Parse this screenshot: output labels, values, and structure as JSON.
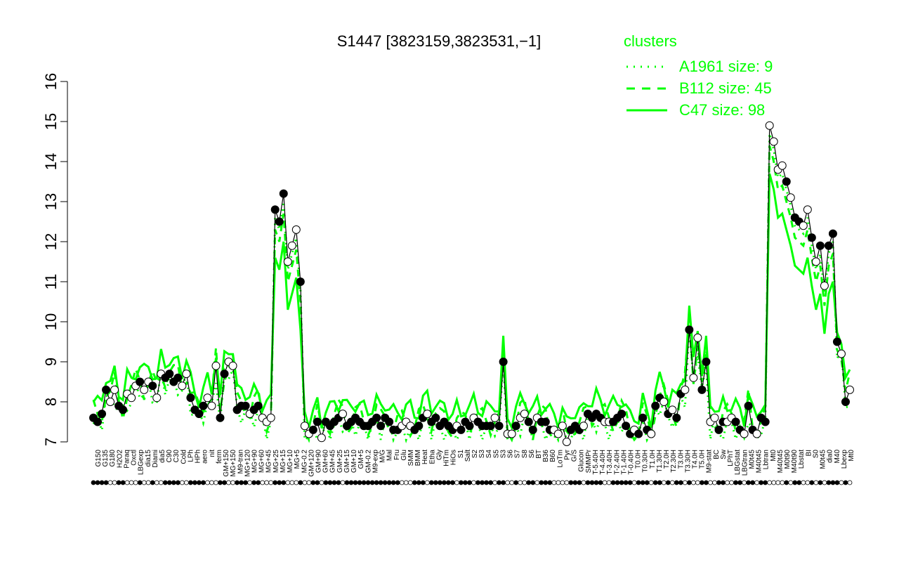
{
  "chart_data": {
    "type": "line",
    "title": "S1447 [3823159,3823531,−1]",
    "xlabel": "",
    "ylabel": "",
    "ylim": [
      7,
      16
    ],
    "yticks": [
      7,
      8,
      9,
      10,
      11,
      12,
      13,
      14,
      15,
      16
    ],
    "grid": false,
    "legend": {
      "title": "clusters",
      "position": "top-right",
      "color": "#00ff00",
      "entries": [
        {
          "label": "A1961 size: 9",
          "style": "dotted"
        },
        {
          "label": "B112 size: 45",
          "style": "dashed"
        },
        {
          "label": "C47 size: 98",
          "style": "solid"
        }
      ]
    },
    "x_tick_labels": [
      "G150",
      "G135",
      "G180",
      "H2O2",
      "Paraq",
      "Oxctl",
      "LBGexp",
      "dia15",
      "Diami",
      "dia5",
      "C90",
      "C30",
      "Cold",
      "LPh",
      "HPh",
      "aero",
      "nit",
      "ferm",
      "GM+150",
      "MG+150",
      "M9-tran",
      "MG+120",
      "MG+90",
      "MG+60",
      "MG+45",
      "MG+25",
      "MG+15",
      "MG+10",
      "MG+5",
      "MG-0.2",
      "GM+120",
      "GM+90",
      "GM+60",
      "GM+45",
      "GM+25",
      "GM+15",
      "GM+10",
      "GM+5",
      "GM-0.2",
      "M9-exp",
      "M/G",
      "Mal",
      "Fru",
      "Glu",
      "SMM",
      "BMM",
      "Heat",
      "Etha",
      "Gly",
      "HiTm",
      "HiOs",
      "S1",
      "Salt",
      "S2",
      "S3",
      "S4",
      "S5",
      "S3",
      "S6",
      "S7",
      "S8",
      "S6",
      "BT",
      "B36",
      "B60",
      "LoTm",
      "Pyr",
      "G/S",
      "Glucon",
      "SMMPr",
      "T-5.40H",
      "T-4.40H",
      "T-3.40H",
      "T-2.40H",
      "T-1.40H",
      "T-0.40H",
      "T0.0H",
      "T0.30H",
      "T1.0H",
      "T1.30H",
      "T2.0H",
      "T2.30H",
      "T3.0H",
      "T3.30H",
      "T4.0H",
      "T5.0H",
      "M9-stat",
      "BC",
      "Sw",
      "LPhT",
      "LBGstat",
      "LBGtran",
      "M0t45",
      "M40t45",
      "Lbtran",
      "Mt0",
      "M40t45",
      "M0t90",
      "M40t90",
      "Lbstat",
      "BI",
      "S0",
      "M0t45",
      "dia0",
      "M40",
      "Lbexp",
      "Mt0"
    ],
    "series_points_count": 180,
    "points": [
      [
        1,
        7.6,
        "filled"
      ],
      [
        2,
        7.5,
        "filled"
      ],
      [
        3,
        7.7,
        "filled"
      ],
      [
        4,
        8.3,
        "filled"
      ],
      [
        5,
        8.0,
        "open"
      ],
      [
        6,
        8.3,
        "open"
      ],
      [
        7,
        7.9,
        "filled"
      ],
      [
        8,
        7.8,
        "filled"
      ],
      [
        9,
        8.2,
        "open"
      ],
      [
        10,
        8.1,
        "open"
      ],
      [
        11,
        8.4,
        "open"
      ],
      [
        12,
        8.5,
        "filled"
      ],
      [
        13,
        8.3,
        "open"
      ],
      [
        14,
        8.5,
        "open"
      ],
      [
        15,
        8.4,
        "filled"
      ],
      [
        16,
        8.1,
        "open"
      ],
      [
        17,
        8.7,
        "open"
      ],
      [
        18,
        8.6,
        "filled"
      ],
      [
        19,
        8.7,
        "filled"
      ],
      [
        20,
        8.5,
        "filled"
      ],
      [
        21,
        8.6,
        "filled"
      ],
      [
        22,
        8.4,
        "open"
      ],
      [
        23,
        8.7,
        "open"
      ],
      [
        24,
        8.1,
        "filled"
      ],
      [
        25,
        7.8,
        "filled"
      ],
      [
        26,
        7.7,
        "filled"
      ],
      [
        27,
        7.9,
        "filled"
      ],
      [
        28,
        8.1,
        "open"
      ],
      [
        29,
        7.9,
        "open"
      ],
      [
        30,
        8.9,
        "open"
      ],
      [
        31,
        7.6,
        "filled"
      ],
      [
        32,
        8.7,
        "filled"
      ],
      [
        33,
        9.0,
        "open"
      ],
      [
        34,
        8.9,
        "open"
      ],
      [
        35,
        7.8,
        "filled"
      ],
      [
        36,
        7.9,
        "filled"
      ],
      [
        37,
        7.9,
        "filled"
      ],
      [
        38,
        7.7,
        "open"
      ],
      [
        39,
        7.8,
        "filled"
      ],
      [
        40,
        7.9,
        "filled"
      ],
      [
        41,
        7.6,
        "open"
      ],
      [
        42,
        7.5,
        "open"
      ],
      [
        43,
        7.6,
        "open"
      ],
      [
        44,
        12.8,
        "filled"
      ],
      [
        45,
        12.5,
        "filled"
      ],
      [
        46,
        13.2,
        "filled"
      ],
      [
        47,
        11.5,
        "open"
      ],
      [
        48,
        11.9,
        "open"
      ],
      [
        49,
        12.3,
        "open"
      ],
      [
        50,
        11.0,
        "filled"
      ],
      [
        51,
        7.4,
        "open"
      ],
      [
        52,
        7.2,
        "open"
      ],
      [
        53,
        7.3,
        "filled"
      ],
      [
        54,
        7.5,
        "filled"
      ],
      [
        55,
        7.1,
        "open"
      ],
      [
        56,
        7.5,
        "filled"
      ],
      [
        57,
        7.4,
        "filled"
      ],
      [
        58,
        7.5,
        "filled"
      ],
      [
        59,
        7.6,
        "filled"
      ],
      [
        60,
        7.7,
        "open"
      ],
      [
        61,
        7.4,
        "filled"
      ],
      [
        62,
        7.5,
        "filled"
      ],
      [
        63,
        7.6,
        "filled"
      ],
      [
        64,
        7.5,
        "filled"
      ],
      [
        65,
        7.4,
        "filled"
      ],
      [
        66,
        7.4,
        "filled"
      ],
      [
        67,
        7.5,
        "filled"
      ],
      [
        68,
        7.6,
        "filled"
      ],
      [
        69,
        7.4,
        "filled"
      ],
      [
        70,
        7.6,
        "filled"
      ],
      [
        71,
        7.5,
        "filled"
      ],
      [
        72,
        7.3,
        "filled"
      ],
      [
        73,
        7.3,
        "filled"
      ],
      [
        74,
        7.4,
        "open"
      ],
      [
        75,
        7.5,
        "open"
      ],
      [
        76,
        7.4,
        "open"
      ],
      [
        77,
        7.3,
        "filled"
      ],
      [
        78,
        7.4,
        "filled"
      ],
      [
        79,
        7.6,
        "filled"
      ],
      [
        80,
        7.7,
        "open"
      ],
      [
        81,
        7.5,
        "filled"
      ],
      [
        82,
        7.6,
        "filled"
      ],
      [
        83,
        7.4,
        "filled"
      ],
      [
        84,
        7.5,
        "filled"
      ],
      [
        85,
        7.4,
        "filled"
      ],
      [
        86,
        7.3,
        "filled"
      ],
      [
        87,
        7.4,
        "open"
      ],
      [
        88,
        7.3,
        "filled"
      ],
      [
        89,
        7.5,
        "filled"
      ],
      [
        90,
        7.4,
        "filled"
      ],
      [
        91,
        7.6,
        "open"
      ],
      [
        92,
        7.5,
        "filled"
      ],
      [
        93,
        7.4,
        "filled"
      ],
      [
        94,
        7.4,
        "filled"
      ],
      [
        95,
        7.4,
        "filled"
      ],
      [
        96,
        7.6,
        "open"
      ],
      [
        97,
        7.4,
        "filled"
      ],
      [
        98,
        9.0,
        "filled"
      ],
      [
        99,
        7.2,
        "open"
      ],
      [
        100,
        7.2,
        "open"
      ],
      [
        101,
        7.4,
        "filled"
      ],
      [
        102,
        7.6,
        "open"
      ],
      [
        103,
        7.7,
        "open"
      ],
      [
        104,
        7.5,
        "filled"
      ],
      [
        105,
        7.3,
        "filled"
      ],
      [
        106,
        7.6,
        "open"
      ],
      [
        107,
        7.5,
        "filled"
      ],
      [
        108,
        7.5,
        "filled"
      ],
      [
        109,
        7.3,
        "filled"
      ],
      [
        110,
        7.3,
        "open"
      ],
      [
        111,
        7.2,
        "open"
      ],
      [
        112,
        7.4,
        "open"
      ],
      [
        113,
        7.0,
        "open"
      ],
      [
        114,
        7.3,
        "filled"
      ],
      [
        115,
        7.4,
        "filled"
      ],
      [
        116,
        7.3,
        "filled"
      ],
      [
        117,
        7.4,
        "open"
      ],
      [
        118,
        7.7,
        "filled"
      ],
      [
        119,
        7.6,
        "filled"
      ],
      [
        120,
        7.7,
        "filled"
      ],
      [
        121,
        7.6,
        "filled"
      ],
      [
        122,
        7.5,
        "open"
      ],
      [
        123,
        7.5,
        "open"
      ],
      [
        124,
        7.5,
        "filled"
      ],
      [
        125,
        7.6,
        "filled"
      ],
      [
        126,
        7.7,
        "filled"
      ],
      [
        127,
        7.4,
        "filled"
      ],
      [
        128,
        7.2,
        "filled"
      ],
      [
        129,
        7.3,
        "open"
      ],
      [
        130,
        7.2,
        "filled"
      ],
      [
        131,
        7.6,
        "filled"
      ],
      [
        132,
        7.3,
        "filled"
      ],
      [
        133,
        7.2,
        "open"
      ],
      [
        134,
        7.9,
        "filled"
      ],
      [
        135,
        8.1,
        "filled"
      ],
      [
        136,
        8.0,
        "open"
      ],
      [
        137,
        7.7,
        "filled"
      ],
      [
        138,
        7.8,
        "open"
      ],
      [
        139,
        7.6,
        "filled"
      ],
      [
        140,
        8.2,
        "filled"
      ],
      [
        141,
        8.3,
        "open"
      ],
      [
        142,
        9.8,
        "filled"
      ],
      [
        143,
        8.6,
        "open"
      ],
      [
        144,
        9.6,
        "open"
      ],
      [
        145,
        8.3,
        "filled"
      ],
      [
        146,
        9.0,
        "filled"
      ],
      [
        147,
        7.5,
        "open"
      ],
      [
        148,
        7.6,
        "open"
      ],
      [
        149,
        7.3,
        "filled"
      ],
      [
        150,
        7.5,
        "filled"
      ],
      [
        151,
        7.5,
        "open"
      ],
      [
        152,
        7.6,
        "open"
      ],
      [
        153,
        7.5,
        "filled"
      ],
      [
        154,
        7.3,
        "filled"
      ],
      [
        155,
        7.2,
        "open"
      ],
      [
        156,
        7.9,
        "filled"
      ],
      [
        157,
        7.3,
        "filled"
      ],
      [
        158,
        7.2,
        "open"
      ],
      [
        159,
        7.6,
        "filled"
      ],
      [
        160,
        7.5,
        "filled"
      ],
      [
        161,
        14.9,
        "open"
      ],
      [
        162,
        14.5,
        "open"
      ],
      [
        163,
        13.8,
        "open"
      ],
      [
        164,
        13.9,
        "open"
      ],
      [
        165,
        13.5,
        "filled"
      ],
      [
        166,
        13.1,
        "open"
      ],
      [
        167,
        12.6,
        "filled"
      ],
      [
        168,
        12.5,
        "filled"
      ],
      [
        169,
        12.4,
        "open"
      ],
      [
        170,
        12.8,
        "open"
      ],
      [
        171,
        12.1,
        "filled"
      ],
      [
        172,
        11.5,
        "open"
      ],
      [
        173,
        11.9,
        "filled"
      ],
      [
        174,
        10.9,
        "open"
      ],
      [
        175,
        11.9,
        "filled"
      ],
      [
        176,
        12.2,
        "filled"
      ],
      [
        177,
        9.5,
        "filled"
      ],
      [
        178,
        9.2,
        "open"
      ],
      [
        179,
        8.0,
        "filled"
      ],
      [
        180,
        8.3,
        "open"
      ]
    ]
  }
}
